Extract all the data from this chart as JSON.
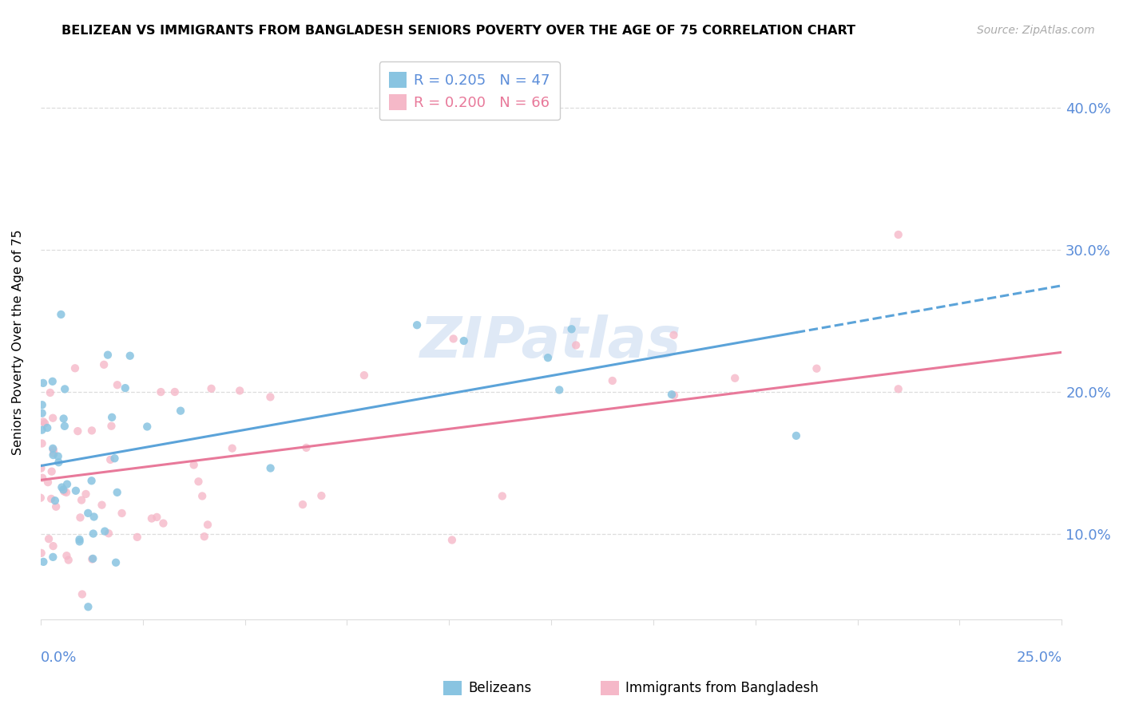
{
  "title": "BELIZEAN VS IMMIGRANTS FROM BANGLADESH SENIORS POVERTY OVER THE AGE OF 75 CORRELATION CHART",
  "source": "Source: ZipAtlas.com",
  "ylabel_label": "Seniors Poverty Over the Age of 75",
  "series1_label": "Belizeans",
  "series1_color": "#89c4e1",
  "series1_R": "0.205",
  "series1_N": "47",
  "series2_label": "Immigrants from Bangladesh",
  "series2_color": "#f5b8c8",
  "series2_R": "0.200",
  "series2_N": "66",
  "trend1_color": "#5ba3d9",
  "trend2_color": "#e8799a",
  "watermark": "ZIPatlas",
  "background_color": "#ffffff",
  "xlim": [
    0.0,
    0.25
  ],
  "ylim": [
    0.04,
    0.43
  ],
  "grid_color": "#dddddd",
  "tick_label_color": "#5b8dd9"
}
